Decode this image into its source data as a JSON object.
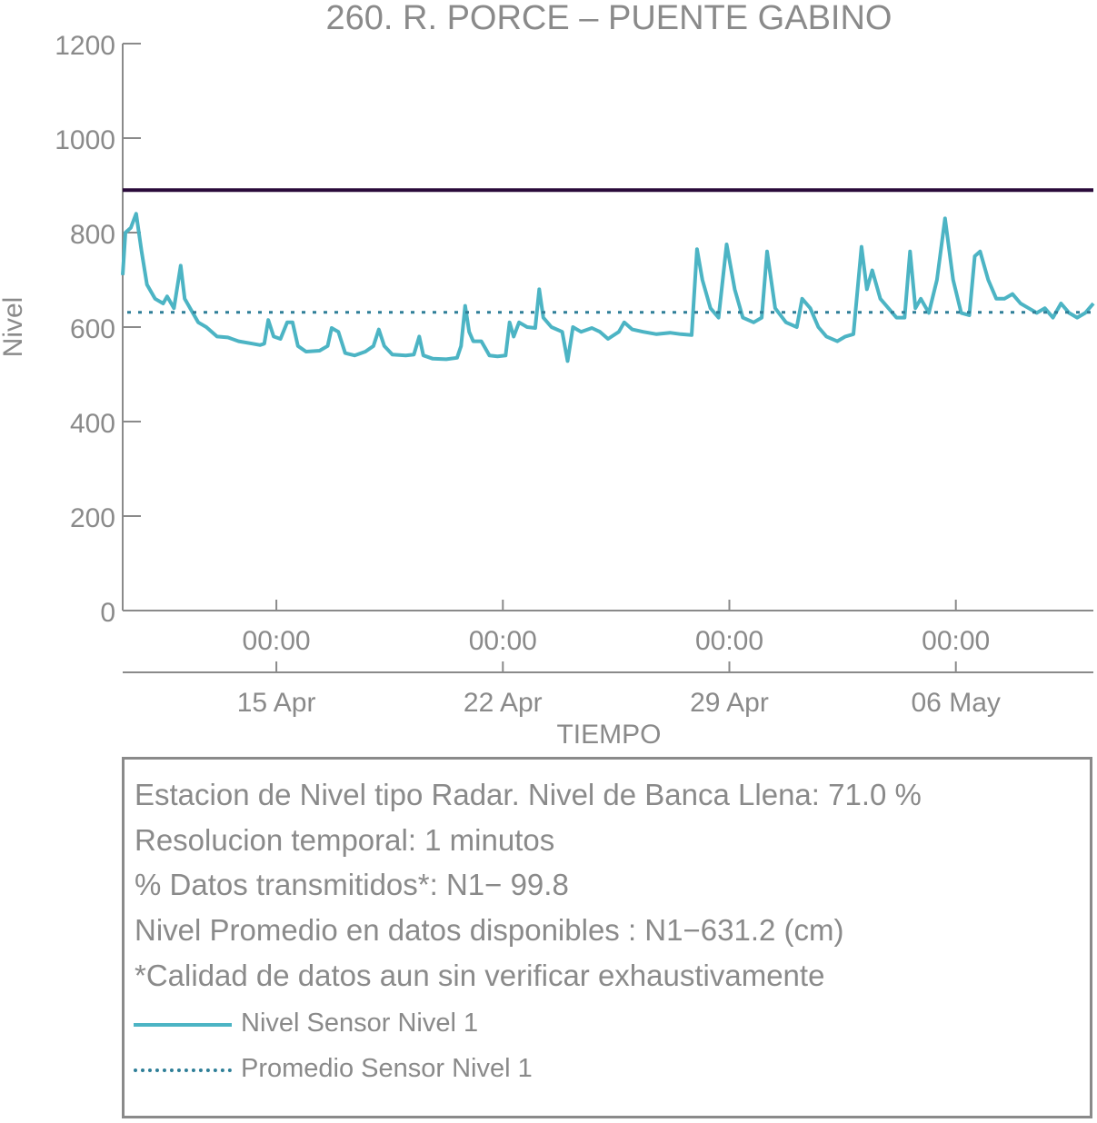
{
  "chart_data": {
    "type": "line",
    "title": "260. R. PORCE – PUENTE GABINO",
    "xlabel": "TIEMPO",
    "ylabel": "Nivel",
    "ylim": [
      0,
      1200
    ],
    "yticks": [
      "0",
      "200",
      "400",
      "600",
      "800",
      "1000",
      "1200"
    ],
    "xlim": [
      "2023-04-10T06:00",
      "2023-05-10T06:00"
    ],
    "xticks": [
      {
        "time": "00:00",
        "date": "15 Apr",
        "x": "2023-04-15T00:00"
      },
      {
        "time": "00:00",
        "date": "22 Apr",
        "x": "2023-04-22T00:00"
      },
      {
        "time": "00:00",
        "date": "29 Apr",
        "x": "2023-04-29T00:00"
      },
      {
        "time": "00:00",
        "date": "06 May",
        "x": "2023-05-06T00:00"
      }
    ],
    "bankfull_level": 890,
    "series": [
      {
        "name": "Nivel Sensor Nivel 1",
        "color": "#4cb4c4",
        "points": [
          [
            "2023-04-10T06:00",
            710
          ],
          [
            "2023-04-10T08:00",
            800
          ],
          [
            "2023-04-10T12:00",
            810
          ],
          [
            "2023-04-10T16:00",
            840
          ],
          [
            "2023-04-10T20:00",
            760
          ],
          [
            "2023-04-11T00:00",
            690
          ],
          [
            "2023-04-11T06:00",
            660
          ],
          [
            "2023-04-11T12:00",
            650
          ],
          [
            "2023-04-11T15:00",
            665
          ],
          [
            "2023-04-11T20:00",
            640
          ],
          [
            "2023-04-12T01:00",
            730
          ],
          [
            "2023-04-12T04:00",
            660
          ],
          [
            "2023-04-12T08:00",
            640
          ],
          [
            "2023-04-12T14:00",
            610
          ],
          [
            "2023-04-12T20:00",
            600
          ],
          [
            "2023-04-13T04:00",
            580
          ],
          [
            "2023-04-13T12:00",
            578
          ],
          [
            "2023-04-13T20:00",
            570
          ],
          [
            "2023-04-14T06:00",
            565
          ],
          [
            "2023-04-14T12:00",
            562
          ],
          [
            "2023-04-14T15:00",
            565
          ],
          [
            "2023-04-14T18:00",
            615
          ],
          [
            "2023-04-14T22:00",
            580
          ],
          [
            "2023-04-15T03:00",
            575
          ],
          [
            "2023-04-15T08:00",
            610
          ],
          [
            "2023-04-15T12:00",
            610
          ],
          [
            "2023-04-15T16:00",
            560
          ],
          [
            "2023-04-15T22:00",
            548
          ],
          [
            "2023-04-16T08:00",
            550
          ],
          [
            "2023-04-16T14:00",
            560
          ],
          [
            "2023-04-16T17:00",
            598
          ],
          [
            "2023-04-16T22:00",
            590
          ],
          [
            "2023-04-17T03:00",
            545
          ],
          [
            "2023-04-17T10:00",
            540
          ],
          [
            "2023-04-17T18:00",
            548
          ],
          [
            "2023-04-18T00:00",
            560
          ],
          [
            "2023-04-18T04:00",
            595
          ],
          [
            "2023-04-18T08:00",
            560
          ],
          [
            "2023-04-18T14:00",
            542
          ],
          [
            "2023-04-19T00:00",
            540
          ],
          [
            "2023-04-19T06:00",
            542
          ],
          [
            "2023-04-19T10:00",
            580
          ],
          [
            "2023-04-19T13:00",
            540
          ],
          [
            "2023-04-19T20:00",
            533
          ],
          [
            "2023-04-20T06:00",
            532
          ],
          [
            "2023-04-20T14:00",
            535
          ],
          [
            "2023-04-20T17:00",
            560
          ],
          [
            "2023-04-20T20:00",
            645
          ],
          [
            "2023-04-20T23:00",
            590
          ],
          [
            "2023-04-21T02:00",
            570
          ],
          [
            "2023-04-21T08:00",
            570
          ],
          [
            "2023-04-21T14:00",
            540
          ],
          [
            "2023-04-21T20:00",
            538
          ],
          [
            "2023-04-22T02:00",
            540
          ],
          [
            "2023-04-22T05:00",
            610
          ],
          [
            "2023-04-22T08:00",
            580
          ],
          [
            "2023-04-22T12:00",
            610
          ],
          [
            "2023-04-22T18:00",
            600
          ],
          [
            "2023-04-23T00:00",
            598
          ],
          [
            "2023-04-23T03:00",
            680
          ],
          [
            "2023-04-23T06:00",
            620
          ],
          [
            "2023-04-23T12:00",
            600
          ],
          [
            "2023-04-23T20:00",
            590
          ],
          [
            "2023-04-24T00:00",
            528
          ],
          [
            "2023-04-24T04:00",
            600
          ],
          [
            "2023-04-24T10:00",
            590
          ],
          [
            "2023-04-24T18:00",
            598
          ],
          [
            "2023-04-25T00:00",
            590
          ],
          [
            "2023-04-25T06:00",
            575
          ],
          [
            "2023-04-25T14:00",
            590
          ],
          [
            "2023-04-25T18:00",
            610
          ],
          [
            "2023-04-26T00:00",
            595
          ],
          [
            "2023-04-26T08:00",
            590
          ],
          [
            "2023-04-26T18:00",
            585
          ],
          [
            "2023-04-27T04:00",
            588
          ],
          [
            "2023-04-27T12:00",
            585
          ],
          [
            "2023-04-27T20:00",
            583
          ],
          [
            "2023-04-28T00:00",
            765
          ],
          [
            "2023-04-28T04:00",
            700
          ],
          [
            "2023-04-28T10:00",
            640
          ],
          [
            "2023-04-28T16:00",
            620
          ],
          [
            "2023-04-28T22:00",
            775
          ],
          [
            "2023-04-29T04:00",
            680
          ],
          [
            "2023-04-29T10:00",
            620
          ],
          [
            "2023-04-29T18:00",
            610
          ],
          [
            "2023-04-30T00:00",
            620
          ],
          [
            "2023-04-30T04:00",
            760
          ],
          [
            "2023-04-30T10:00",
            640
          ],
          [
            "2023-04-30T18:00",
            610
          ],
          [
            "2023-05-01T02:00",
            600
          ],
          [
            "2023-05-01T06:00",
            660
          ],
          [
            "2023-05-01T12:00",
            640
          ],
          [
            "2023-05-01T18:00",
            600
          ],
          [
            "2023-05-02T00:00",
            580
          ],
          [
            "2023-05-02T08:00",
            570
          ],
          [
            "2023-05-02T14:00",
            580
          ],
          [
            "2023-05-02T20:00",
            585
          ],
          [
            "2023-05-03T02:00",
            770
          ],
          [
            "2023-05-03T06:00",
            680
          ],
          [
            "2023-05-03T10:00",
            720
          ],
          [
            "2023-05-03T16:00",
            660
          ],
          [
            "2023-05-03T22:00",
            640
          ],
          [
            "2023-05-04T04:00",
            620
          ],
          [
            "2023-05-04T10:00",
            620
          ],
          [
            "2023-05-04T14:00",
            760
          ],
          [
            "2023-05-04T18:00",
            640
          ],
          [
            "2023-05-04T22:00",
            660
          ],
          [
            "2023-05-05T04:00",
            630
          ],
          [
            "2023-05-05T10:00",
            700
          ],
          [
            "2023-05-05T16:00",
            830
          ],
          [
            "2023-05-05T22:00",
            700
          ],
          [
            "2023-05-06T04:00",
            630
          ],
          [
            "2023-05-06T10:00",
            625
          ],
          [
            "2023-05-06T14:00",
            750
          ],
          [
            "2023-05-06T18:00",
            760
          ],
          [
            "2023-05-07T00:00",
            700
          ],
          [
            "2023-05-07T06:00",
            660
          ],
          [
            "2023-05-07T12:00",
            660
          ],
          [
            "2023-05-07T18:00",
            670
          ],
          [
            "2023-05-08T00:00",
            650
          ],
          [
            "2023-05-08T06:00",
            640
          ],
          [
            "2023-05-08T12:00",
            630
          ],
          [
            "2023-05-08T18:00",
            640
          ],
          [
            "2023-05-09T00:00",
            620
          ],
          [
            "2023-05-09T06:00",
            650
          ],
          [
            "2023-05-09T12:00",
            630
          ],
          [
            "2023-05-09T18:00",
            620
          ],
          [
            "2023-05-10T00:00",
            630
          ],
          [
            "2023-05-10T06:00",
            650
          ]
        ]
      },
      {
        "name": "Promedio Sensor Nivel 1",
        "color": "#2f7f98",
        "value": 631.2
      }
    ]
  },
  "info": {
    "lines": [
      "Estacion de Nivel tipo Radar. Nivel de Banca Llena: 71.0 %",
      "Resolucion temporal: 1 minutos",
      "% Datos transmitidos*: N1− 99.8",
      "Nivel Promedio en datos disponibles : N1−631.2 (cm)",
      "*Calidad de datos aun sin verificar exhaustivamente"
    ],
    "legend": [
      {
        "label": "Nivel Sensor Nivel 1",
        "style": "solid"
      },
      {
        "label": "Promedio Sensor Nivel 1",
        "style": "dotted"
      }
    ]
  },
  "colors": {
    "axis": "#8a8a8a",
    "bankfull": "#2a0a3a",
    "series": "#4cb4c4",
    "mean": "#2f7f98"
  }
}
